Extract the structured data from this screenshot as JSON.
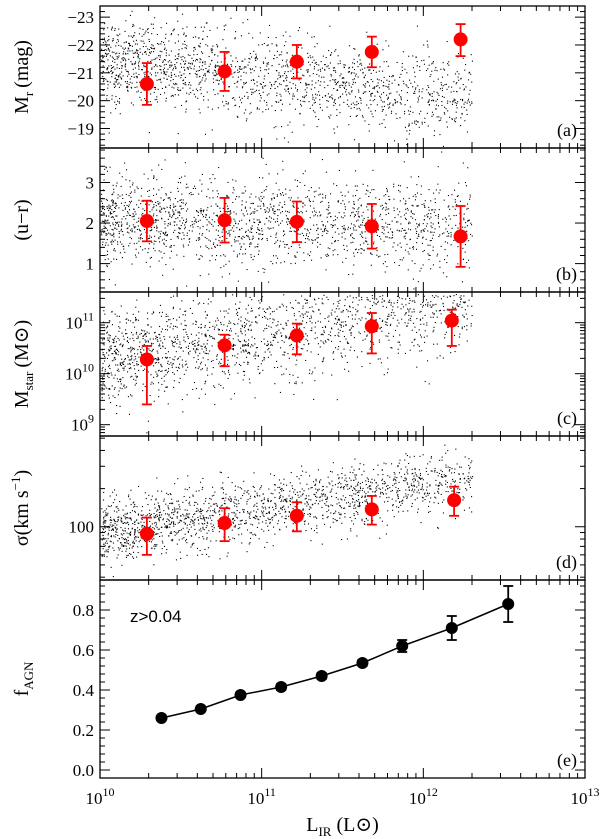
{
  "chart_data": {
    "type": "scatter",
    "xlabel": "L_IR (L⊙)",
    "xlabel_main": "L",
    "xlabel_sub": "IR",
    "xlabel_unit": "(L⊙)",
    "xscale": "log",
    "xlim": [
      10000000000.0,
      10000000000000.0
    ],
    "xticks": [
      {
        "value": 10000000000.0,
        "base": "10",
        "exp": "10"
      },
      {
        "value": 100000000000.0,
        "base": "10",
        "exp": "11"
      },
      {
        "value": 1000000000000.0,
        "base": "10",
        "exp": "12"
      },
      {
        "value": 10000000000000.0,
        "base": "10",
        "exp": "13"
      }
    ],
    "panels": [
      {
        "id": "a",
        "label": "(a)",
        "ylabel_main": "M",
        "ylabel_sub": "r",
        "ylabel_unit": "(mag)",
        "yscale": "linear",
        "ylim": [
          -18.3,
          -23.4
        ],
        "yticks": [
          {
            "value": -23,
            "label": "−23"
          },
          {
            "value": -22,
            "label": "−22"
          },
          {
            "value": -21,
            "label": "−21"
          },
          {
            "value": -20,
            "label": "−20"
          },
          {
            "value": -19,
            "label": "−19"
          }
        ],
        "scatter_desc": {
          "center": -21.1,
          "spread": 0.75,
          "slope": 0.6,
          "xmin": 10000000000.0,
          "xmax": 2000000000000.0,
          "n": 1700
        },
        "series": [
          {
            "name": "binned mean",
            "color": "#ff0000",
            "x": [
              19500000000.0,
              59000000000.0,
              165000000000.0,
              480000000000.0,
              1700000000000.0
            ],
            "y": [
              -20.6,
              -21.05,
              -21.4,
              -21.75,
              -22.2
            ],
            "err_lo": [
              0.75,
              0.7,
              0.6,
              0.55,
              0.55
            ],
            "err_hi": [
              0.75,
              0.7,
              0.6,
              0.55,
              0.6
            ]
          }
        ]
      },
      {
        "id": "b",
        "label": "(b)",
        "ylabel_main": "(u−r)",
        "ylabel_sub": "",
        "ylabel_unit": "",
        "yscale": "linear",
        "ylim": [
          0.3,
          3.85
        ],
        "yticks": [
          {
            "value": 1,
            "label": "1"
          },
          {
            "value": 2,
            "label": "2"
          },
          {
            "value": 3,
            "label": "3"
          }
        ],
        "scatter_desc": {
          "center": 2.05,
          "spread": 0.55,
          "slope": -0.05,
          "xmin": 10000000000.0,
          "xmax": 2000000000000.0,
          "n": 1700
        },
        "series": [
          {
            "name": "binned mean",
            "color": "#ff0000",
            "x": [
              19500000000.0,
              59000000000.0,
              165000000000.0,
              480000000000.0,
              1700000000000.0
            ],
            "y": [
              2.05,
              2.07,
              2.03,
              1.92,
              1.67
            ],
            "err_lo": [
              0.5,
              0.55,
              0.5,
              0.55,
              0.75
            ],
            "err_hi": [
              0.5,
              0.55,
              0.5,
              0.55,
              0.75
            ]
          }
        ]
      },
      {
        "id": "c",
        "label": "(c)",
        "ylabel_main": "M",
        "ylabel_sub": "star",
        "ylabel_unit": "(M⊙)",
        "yscale": "log",
        "ylim": [
          600000000.0,
          400000000000.0
        ],
        "yticks": [
          {
            "value": 1000000000.0,
            "base": "10",
            "exp": "9"
          },
          {
            "value": 10000000000.0,
            "base": "10",
            "exp": "10"
          },
          {
            "value": 100000000000.0,
            "base": "10",
            "exp": "11"
          }
        ],
        "scatter_desc": {
          "center": 10.55,
          "spread": 0.45,
          "slope": 0.5,
          "xmin": 10000000000.0,
          "xmax": 2000000000000.0,
          "n": 1700
        },
        "series": [
          {
            "name": "binned mean",
            "color": "#ff0000",
            "x": [
              19500000000.0,
              59000000000.0,
              165000000000.0,
              480000000000.0,
              1500000000000.0
            ],
            "y": [
              19000000000.0,
              36000000000.0,
              56000000000.0,
              85000000000.0,
              110000000000.0
            ],
            "err_lo": [
              16500000000.0,
              22000000000.0,
              32000000000.0,
              60000000000.0,
              75000000000.0
            ],
            "err_hi": [
              16000000000.0,
              22000000000.0,
              40000000000.0,
              70000000000.0,
              70000000000.0
            ]
          }
        ]
      },
      {
        "id": "d",
        "label": "(d)",
        "ylabel_main": "σ(km s",
        "ylabel_sup": "−1",
        "ylabel_unit": ")",
        "yscale": "log",
        "ylim": [
          38,
          520
        ],
        "yticks": [
          {
            "value": 100,
            "label": "100"
          }
        ],
        "scatter_desc": {
          "center": 2.08,
          "spread": 0.12,
          "slope": 0.18,
          "xmin": 10000000000.0,
          "xmax": 2000000000000.0,
          "n": 1700
        },
        "series": [
          {
            "name": "binned mean",
            "color": "#ff0000",
            "x": [
              19500000000.0,
              59000000000.0,
              165000000000.0,
              480000000000.0,
              1550000000000.0
            ],
            "y": [
              88,
              107,
              122,
              137,
              162
            ],
            "err_lo": [
              28,
              30,
              30,
              33,
              40
            ],
            "err_hi": [
              30,
              33,
              34,
              38,
              45
            ]
          }
        ]
      },
      {
        "id": "e",
        "label": "(e)",
        "annotation": "z>0.04",
        "ylabel_main": "f",
        "ylabel_sub": "AGN",
        "ylabel_unit": "",
        "yscale": "linear",
        "ylim": [
          -0.04,
          0.95
        ],
        "yticks": [
          {
            "value": 0.0,
            "label": "0.0"
          },
          {
            "value": 0.2,
            "label": "0.2"
          },
          {
            "value": 0.4,
            "label": "0.4"
          },
          {
            "value": 0.6,
            "label": "0.6"
          },
          {
            "value": 0.8,
            "label": "0.8"
          }
        ],
        "series": [
          {
            "name": "AGN fraction",
            "color": "#000000",
            "line": true,
            "x": [
              24000000000.0,
              42000000000.0,
              74000000000.0,
              132000000000.0,
              235000000000.0,
              420000000000.0,
              740000000000.0,
              1500000000000.0,
              3350000000000.0
            ],
            "y": [
              0.26,
              0.305,
              0.375,
              0.415,
              0.47,
              0.535,
              0.62,
              0.71,
              0.83
            ],
            "err_lo": [
              0.01,
              0.01,
              0.012,
              0.015,
              0.015,
              0.015,
              0.03,
              0.06,
              0.09
            ],
            "err_hi": [
              0.01,
              0.01,
              0.012,
              0.015,
              0.015,
              0.015,
              0.03,
              0.06,
              0.09
            ]
          }
        ]
      }
    ]
  }
}
